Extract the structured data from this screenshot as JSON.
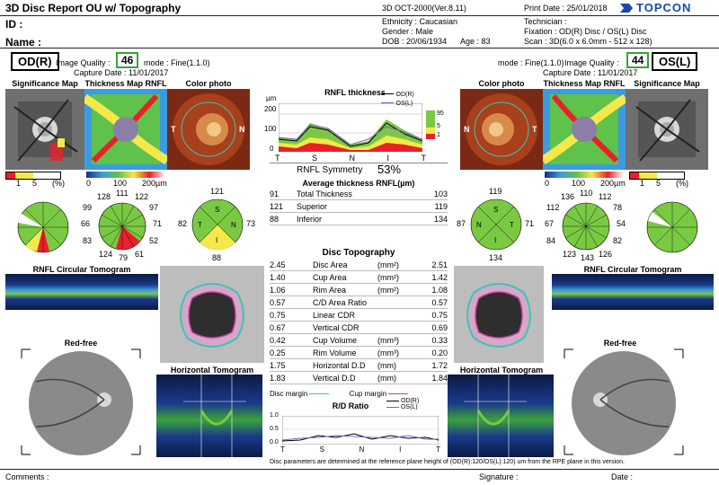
{
  "header": {
    "title": "3D Disc Report OU w/ Topography",
    "device": "3D OCT-2000(Ver.8.11)",
    "print_date": "Print Date : 25/01/2018",
    "brand": "TOPCON",
    "id_label": "ID :",
    "name_label": "Name :",
    "ethnicity": "Ethnicity : Caucasian",
    "gender": "Gender : Male",
    "dob": "DOB : 20/06/1934",
    "age": "Age : 83",
    "technician": "Technician :",
    "fixation": "Fixation : OD(R) Disc / OS(L) Disc",
    "scan": "Scan : 3D(6.0 x 6.0mm - 512 x 128)"
  },
  "od": {
    "eye": "OD(R)",
    "iq_label": "Image Quality :",
    "iq": "46",
    "mode": "mode : Fine(1.1.0)",
    "capture": "Capture Date : 11/01/2017",
    "sig_title": "Significance Map",
    "thick_title": "Thickness Map RNFL",
    "color_title": "Color photo",
    "clock": [
      "111",
      "122",
      "97",
      "71",
      "52",
      "61",
      "79",
      "124",
      "83",
      "66",
      "99",
      "128"
    ],
    "quad": {
      "S": "121",
      "N": "73",
      "I": "88",
      "T": "82"
    },
    "tomo_title": "RNFL Circular Tomogram",
    "redfree": "Red-free",
    "htomo": "Horizontal Tomogram"
  },
  "os": {
    "eye": "OS(L)",
    "iq_label": "Image Quality :",
    "iq": "44",
    "mode": "mode : Fine(1.1.0)",
    "capture": "Capture Date : 11/01/2017",
    "sig_title": "Significance Map",
    "thick_title": "Thickness Map RNFL",
    "color_title": "Color photo",
    "clock": [
      "110",
      "112",
      "78",
      "54",
      "82",
      "126",
      "143",
      "123",
      "84",
      "67",
      "112",
      "136"
    ],
    "quad": {
      "S": "119",
      "N": "87",
      "I": "134",
      "T": "71"
    },
    "tomo_title": "RNFL Circular Tomogram",
    "redfree": "Red-free",
    "htomo": "Horizontal Tomogram"
  },
  "scales": {
    "sig_1": "1",
    "sig_5": "5",
    "sig_pct": "(%)",
    "th_0": "0",
    "th_100": "100",
    "th_200": "200µm"
  },
  "photo_letters": {
    "T": "T",
    "N": "N"
  },
  "rnfl_chart": {
    "title": "RNFL thickness",
    "unit": "µm",
    "y_ticks": [
      "200",
      "100",
      "0"
    ],
    "x_ticks": [
      "T",
      "S",
      "N",
      "I",
      "T"
    ],
    "legend": [
      "OD(R)",
      "OS(L)"
    ],
    "pct": [
      "95",
      "5",
      "1"
    ]
  },
  "symmetry": {
    "label": "RNFL Symmetry",
    "value": "53%"
  },
  "avg": {
    "title": "Average thickness RNFL(µm)",
    "rows": [
      {
        "od": "91",
        "label": "Total Thickness",
        "os": "103"
      },
      {
        "od": "121",
        "label": "Superior",
        "os": "119"
      },
      {
        "od": "88",
        "label": "Inferior",
        "os": "134"
      }
    ]
  },
  "topo": {
    "title": "Disc Topography",
    "rows": [
      {
        "od": "2.45",
        "label": "Disc Area",
        "unit": "(mm²)",
        "os": "2.51"
      },
      {
        "od": "1.40",
        "label": "Cup Area",
        "unit": "(mm²)",
        "os": "1.42"
      },
      {
        "od": "1.06",
        "label": "Rim Area",
        "unit": "(mm²)",
        "os": "1.08"
      },
      {
        "od": "0.57",
        "label": "C/D Area Ratio",
        "unit": "",
        "os": "0.57"
      },
      {
        "od": "0.75",
        "label": "Linear CDR",
        "unit": "",
        "os": "0.75"
      },
      {
        "od": "0.67",
        "label": "Vertical CDR",
        "unit": "",
        "os": "0.69"
      },
      {
        "od": "0.42",
        "label": "Cup Volume",
        "unit": "(mm³)",
        "os": "0.33"
      },
      {
        "od": "0.25",
        "label": "Rim Volume",
        "unit": "(mm³)",
        "os": "0.20"
      },
      {
        "od": "1.75",
        "label": "Horizontal D.D",
        "unit": "(mm)",
        "os": "1.72"
      },
      {
        "od": "1.83",
        "label": "Vertical D.D",
        "unit": "(mm)",
        "os": "1.84"
      }
    ]
  },
  "margins": {
    "disc": "Disc margin",
    "cup": "Cup margin"
  },
  "rd": {
    "title": "R/D Ratio",
    "y_ticks": [
      "1.0",
      "0.5",
      "0.0"
    ],
    "x_ticks": [
      "T",
      "S",
      "N",
      "I",
      "T"
    ],
    "legend": [
      "OD(R)",
      "OS(L)"
    ]
  },
  "footnote": "Disc parameters are determined at the reference plane height of (OD(R):120/OS(L):120) um from the RPE plane in this version.",
  "footer": {
    "comments": "Comments :",
    "signature": "Signature :",
    "date": "Date :"
  },
  "colors": {
    "green": "#7ac943",
    "red": "#e8202a",
    "yellow": "#f4e84a",
    "teal": "#3ac6b3",
    "magenta": "#c83c96"
  }
}
